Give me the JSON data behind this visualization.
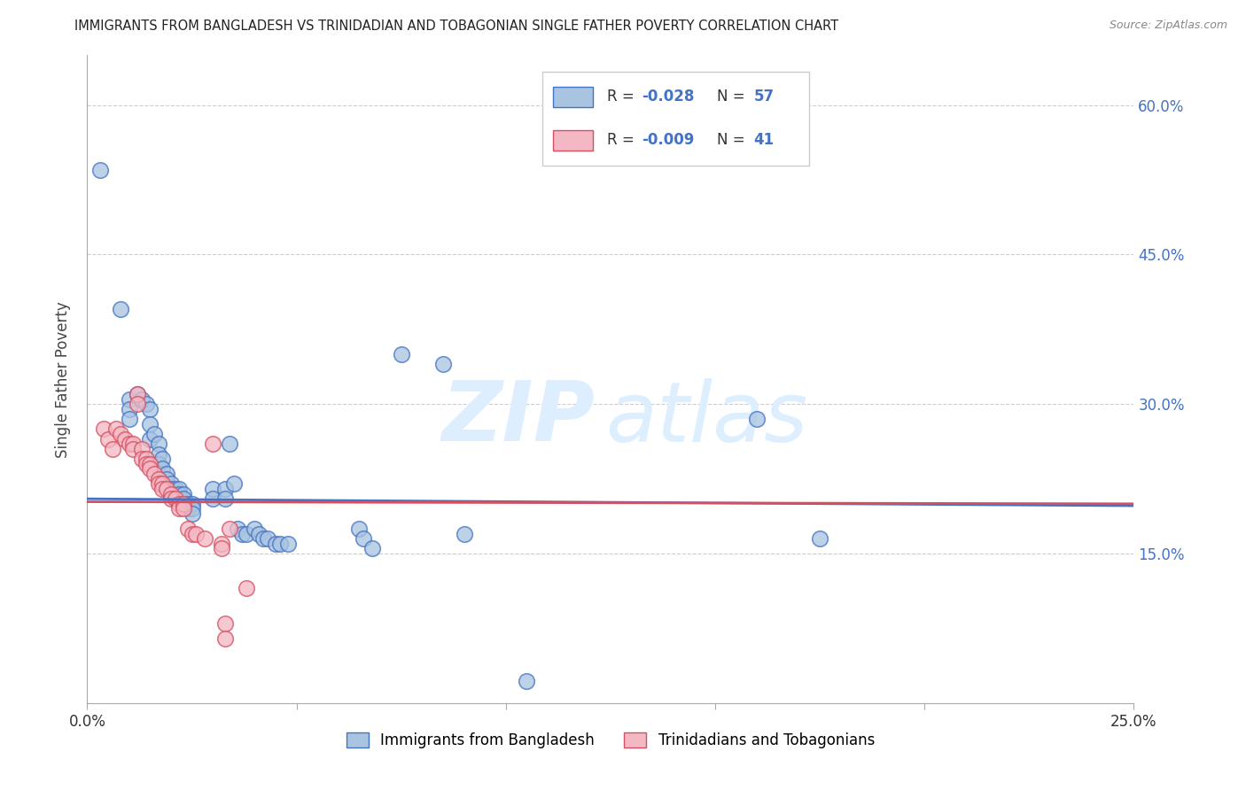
{
  "title": "IMMIGRANTS FROM BANGLADESH VS TRINIDADIAN AND TOBAGONIAN SINGLE FATHER POVERTY CORRELATION CHART",
  "source": "Source: ZipAtlas.com",
  "ylabel": "Single Father Poverty",
  "xlim": [
    0.0,
    0.25
  ],
  "ylim": [
    0.0,
    0.65
  ],
  "xticks": [
    0.0,
    0.05,
    0.1,
    0.15,
    0.2,
    0.25
  ],
  "xticklabels": [
    "0.0%",
    "",
    "",
    "",
    "",
    "25.0%"
  ],
  "yticks": [
    0.0,
    0.15,
    0.3,
    0.45,
    0.6
  ],
  "yticklabels": [
    "",
    "15.0%",
    "30.0%",
    "45.0%",
    "60.0%"
  ],
  "legend_bottom_label1": "Immigrants from Bangladesh",
  "legend_bottom_label2": "Trinidadians and Tobagonians",
  "color_blue": "#a8c4e0",
  "color_pink": "#f4b8c4",
  "color_blue_line": "#4472c4",
  "color_pink_line": "#d45060",
  "blue_line": [
    [
      0.0,
      0.205
    ],
    [
      0.25,
      0.198
    ]
  ],
  "pink_line": [
    [
      0.0,
      0.202
    ],
    [
      0.25,
      0.2
    ]
  ],
  "scatter_blue": [
    [
      0.003,
      0.535
    ],
    [
      0.008,
      0.395
    ],
    [
      0.01,
      0.305
    ],
    [
      0.01,
      0.295
    ],
    [
      0.01,
      0.285
    ],
    [
      0.012,
      0.31
    ],
    [
      0.013,
      0.305
    ],
    [
      0.014,
      0.3
    ],
    [
      0.015,
      0.295
    ],
    [
      0.015,
      0.28
    ],
    [
      0.015,
      0.265
    ],
    [
      0.016,
      0.27
    ],
    [
      0.017,
      0.26
    ],
    [
      0.017,
      0.25
    ],
    [
      0.017,
      0.24
    ],
    [
      0.018,
      0.245
    ],
    [
      0.018,
      0.235
    ],
    [
      0.019,
      0.23
    ],
    [
      0.019,
      0.225
    ],
    [
      0.02,
      0.22
    ],
    [
      0.02,
      0.215
    ],
    [
      0.021,
      0.215
    ],
    [
      0.021,
      0.21
    ],
    [
      0.022,
      0.215
    ],
    [
      0.022,
      0.21
    ],
    [
      0.022,
      0.205
    ],
    [
      0.023,
      0.21
    ],
    [
      0.023,
      0.205
    ],
    [
      0.024,
      0.2
    ],
    [
      0.024,
      0.195
    ],
    [
      0.025,
      0.2
    ],
    [
      0.025,
      0.195
    ],
    [
      0.025,
      0.19
    ],
    [
      0.03,
      0.215
    ],
    [
      0.03,
      0.205
    ],
    [
      0.033,
      0.215
    ],
    [
      0.033,
      0.205
    ],
    [
      0.034,
      0.26
    ],
    [
      0.035,
      0.22
    ],
    [
      0.036,
      0.175
    ],
    [
      0.037,
      0.17
    ],
    [
      0.038,
      0.17
    ],
    [
      0.04,
      0.175
    ],
    [
      0.041,
      0.17
    ],
    [
      0.042,
      0.165
    ],
    [
      0.043,
      0.165
    ],
    [
      0.045,
      0.16
    ],
    [
      0.046,
      0.16
    ],
    [
      0.048,
      0.16
    ],
    [
      0.065,
      0.175
    ],
    [
      0.066,
      0.165
    ],
    [
      0.068,
      0.155
    ],
    [
      0.075,
      0.35
    ],
    [
      0.085,
      0.34
    ],
    [
      0.09,
      0.17
    ],
    [
      0.105,
      0.022
    ],
    [
      0.16,
      0.285
    ],
    [
      0.175,
      0.165
    ]
  ],
  "scatter_pink": [
    [
      0.004,
      0.275
    ],
    [
      0.005,
      0.265
    ],
    [
      0.006,
      0.255
    ],
    [
      0.007,
      0.275
    ],
    [
      0.008,
      0.27
    ],
    [
      0.009,
      0.265
    ],
    [
      0.01,
      0.26
    ],
    [
      0.011,
      0.26
    ],
    [
      0.011,
      0.255
    ],
    [
      0.012,
      0.31
    ],
    [
      0.012,
      0.3
    ],
    [
      0.013,
      0.255
    ],
    [
      0.013,
      0.245
    ],
    [
      0.014,
      0.245
    ],
    [
      0.014,
      0.24
    ],
    [
      0.015,
      0.24
    ],
    [
      0.015,
      0.235
    ],
    [
      0.016,
      0.23
    ],
    [
      0.017,
      0.225
    ],
    [
      0.017,
      0.22
    ],
    [
      0.018,
      0.22
    ],
    [
      0.018,
      0.215
    ],
    [
      0.019,
      0.215
    ],
    [
      0.02,
      0.21
    ],
    [
      0.02,
      0.205
    ],
    [
      0.021,
      0.205
    ],
    [
      0.022,
      0.2
    ],
    [
      0.022,
      0.195
    ],
    [
      0.023,
      0.2
    ],
    [
      0.023,
      0.195
    ],
    [
      0.024,
      0.175
    ],
    [
      0.025,
      0.17
    ],
    [
      0.026,
      0.17
    ],
    [
      0.028,
      0.165
    ],
    [
      0.03,
      0.26
    ],
    [
      0.032,
      0.16
    ],
    [
      0.032,
      0.155
    ],
    [
      0.033,
      0.08
    ],
    [
      0.033,
      0.065
    ],
    [
      0.034,
      0.175
    ],
    [
      0.038,
      0.115
    ]
  ]
}
